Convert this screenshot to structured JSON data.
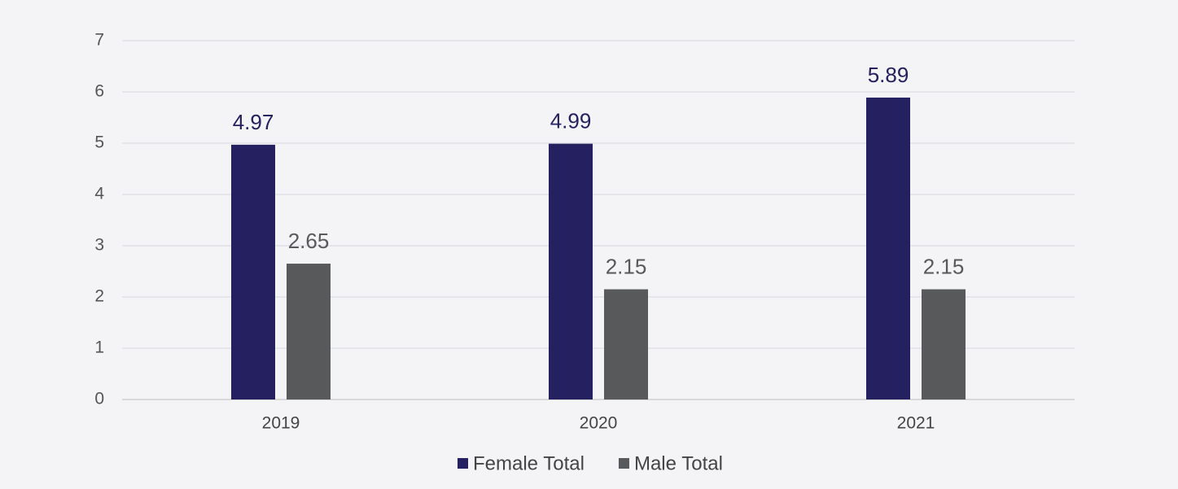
{
  "chart_data": {
    "type": "bar",
    "categories": [
      "2019",
      "2020",
      "2021"
    ],
    "series": [
      {
        "name": "Female Total",
        "color": "#252060",
        "values": [
          4.97,
          4.99,
          5.89
        ]
      },
      {
        "name": "Male Total",
        "color": "#58595b",
        "values": [
          2.65,
          2.15,
          2.15
        ]
      }
    ],
    "ylim": [
      0,
      7
    ],
    "yticks": [
      0,
      1,
      2,
      3,
      4,
      5,
      6,
      7
    ],
    "grid": true,
    "legend": "bottom"
  }
}
